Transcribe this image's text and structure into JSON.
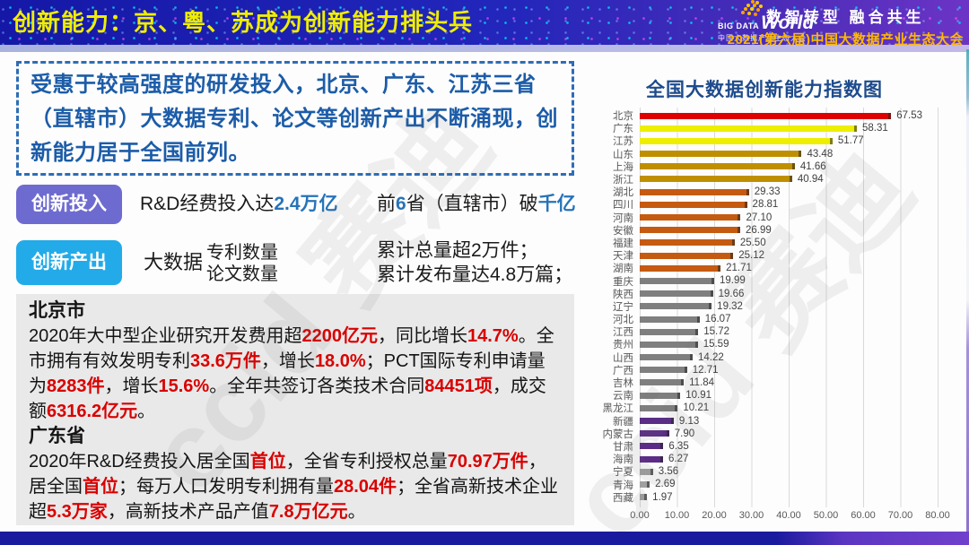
{
  "header": {
    "title": "创新能力：京、粤、苏成为创新能力排头兵",
    "logo": {
      "big": "BIG DATA",
      "world": "World",
      "sub": "中国大数据产业生态大会"
    },
    "slogan": "数智转型 融合共生",
    "event": "2021(第六届)中国大数据产业生态大会"
  },
  "intro": {
    "text": "受惠于较高强度的研发投入，北京、广东、江苏三省（直辖市）大数据专利、论文等创新产出不断涌现，创新能力居于全国前列。"
  },
  "investment": {
    "label": "创新投入",
    "line1": [
      {
        "t": "R&D经费投入达"
      },
      {
        "t": "2.4万亿",
        "s": "blue"
      }
    ],
    "line2": [
      {
        "t": "前"
      },
      {
        "t": "6",
        "s": "blue"
      },
      {
        "t": "省（直辖市）破"
      },
      {
        "t": "千亿",
        "s": "blue"
      }
    ]
  },
  "output": {
    "label": "创新产出",
    "prefix": "大数据",
    "items": [
      "专利数量",
      "论文数量"
    ],
    "results": [
      "累计总量超2万件；",
      "累计发布量达4.8万篇；"
    ]
  },
  "details": {
    "beijing": {
      "title": "北京市",
      "segments": [
        {
          "t": "2020年大中型企业研究开发费用超"
        },
        {
          "t": "2200亿元",
          "s": "red"
        },
        {
          "t": "，同比增长"
        },
        {
          "t": "14.7%",
          "s": "red"
        },
        {
          "t": "。全市拥有有效发明专利"
        },
        {
          "t": "33.6万件",
          "s": "red"
        },
        {
          "t": "，增长"
        },
        {
          "t": "18.0%",
          "s": "red"
        },
        {
          "t": "；PCT国际专利申请量为"
        },
        {
          "t": "8283件",
          "s": "red"
        },
        {
          "t": "，增长"
        },
        {
          "t": "15.6%",
          "s": "red"
        },
        {
          "t": "。全年共签订各类技术合同"
        },
        {
          "t": "84451项",
          "s": "red"
        },
        {
          "t": "，成交额"
        },
        {
          "t": "6316.2亿元",
          "s": "red"
        },
        {
          "t": "。"
        }
      ]
    },
    "guangdong": {
      "title": "广东省",
      "segments": [
        {
          "t": "2020年R&D经费投入居全国"
        },
        {
          "t": "首位",
          "s": "red"
        },
        {
          "t": "，全省专利授权总量"
        },
        {
          "t": "70.97万件",
          "s": "red"
        },
        {
          "t": "，居全国"
        },
        {
          "t": "首位",
          "s": "red"
        },
        {
          "t": "；每万人口发明专利拥有量"
        },
        {
          "t": "28.04件",
          "s": "red"
        },
        {
          "t": "；全省高新技术企业超"
        },
        {
          "t": "5.3万家",
          "s": "red"
        },
        {
          "t": "，高新技术产品产值"
        },
        {
          "t": "7.8万亿元",
          "s": "red"
        },
        {
          "t": "。"
        }
      ]
    }
  },
  "chart_data": {
    "type": "bar",
    "orientation": "horizontal",
    "title": "全国大数据创新能力指数图",
    "categories": [
      "北京",
      "广东",
      "江苏",
      "山东",
      "上海",
      "浙江",
      "湖北",
      "四川",
      "河南",
      "安徽",
      "福建",
      "天津",
      "湖南",
      "重庆",
      "陕西",
      "辽宁",
      "河北",
      "江西",
      "贵州",
      "山西",
      "广西",
      "吉林",
      "云南",
      "黑龙江",
      "新疆",
      "内蒙古",
      "甘肃",
      "海南",
      "宁夏",
      "青海",
      "西藏"
    ],
    "values": [
      67.53,
      58.31,
      51.77,
      43.48,
      41.66,
      40.94,
      29.33,
      28.81,
      27.1,
      26.99,
      25.5,
      25.12,
      21.71,
      19.99,
      19.66,
      19.32,
      16.07,
      15.72,
      15.59,
      14.22,
      12.71,
      11.84,
      10.91,
      10.21,
      9.13,
      7.9,
      6.35,
      6.27,
      3.56,
      2.69,
      1.97
    ],
    "value_labels": [
      "67.53",
      "58.31",
      "51.77",
      "43.48",
      "41.66",
      "40.94",
      "29.33",
      "28.81",
      "27.10",
      "26.99",
      "25.50",
      "25.12",
      "21.71",
      "19.99",
      "19.66",
      "19.32",
      "16.07",
      "15.72",
      "15.59",
      "14.22",
      "12.71",
      "11.84",
      "10.91",
      "10.21",
      "9.13",
      "7.90",
      "6.35",
      "6.27",
      "3.56",
      "2.69",
      "1.97"
    ],
    "colors": [
      "#df0000",
      "#eeee00",
      "#eeee00",
      "#bf8f00",
      "#bf8f00",
      "#bf8f00",
      "#c55a11",
      "#c55a11",
      "#c55a11",
      "#c55a11",
      "#c55a11",
      "#c55a11",
      "#c55a11",
      "#7f7f7f",
      "#7f7f7f",
      "#7f7f7f",
      "#7f7f7f",
      "#7f7f7f",
      "#7f7f7f",
      "#7f7f7f",
      "#7f7f7f",
      "#7f7f7f",
      "#7f7f7f",
      "#7f7f7f",
      "#5b2d86",
      "#5b2d86",
      "#5b2d86",
      "#5b2d86",
      "#a0a0a0",
      "#a0a0a0",
      "#a0a0a0"
    ],
    "xlim": [
      0,
      80
    ],
    "xticks": [
      "0.00",
      "10.00",
      "20.00",
      "30.00",
      "40.00",
      "50.00",
      "60.00",
      "70.00",
      "80.00"
    ],
    "grid": true,
    "legend": "none"
  },
  "watermark": {
    "text": "ccid 赛迪"
  },
  "colors": {
    "header_bg": "#1d1fae",
    "title_yellow": "#efee00",
    "button_purple": "#6e6bd0",
    "button_cyan": "#22abe8",
    "highlight_blue": "#2673b8",
    "highlight_red": "#d90000",
    "intro_text_blue": "#1c5ca8",
    "chart_title_blue": "#1e4b8c",
    "gray_panel": "#e9e9e9"
  }
}
